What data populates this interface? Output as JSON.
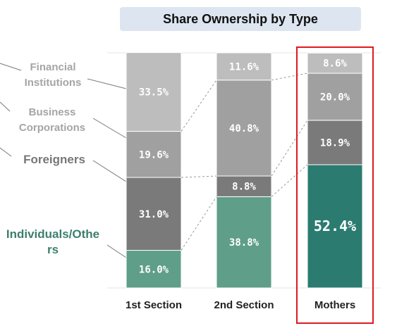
{
  "chart_data": {
    "type": "stacked_bar",
    "title": "Share Ownership by Type",
    "categories": [
      "1st Section",
      "2nd Section",
      "Mothers"
    ],
    "ylim": [
      0,
      100
    ],
    "series": [
      {
        "name": "Individuals/Others",
        "color": "#5f9e89",
        "colors": [
          "#5f9e89",
          "#5f9e89",
          "#2b7b70"
        ],
        "values": [
          16.0,
          38.8,
          52.4
        ],
        "value_labels": [
          "16.0%",
          "38.8%",
          "52.4%"
        ]
      },
      {
        "name": "Foreigners",
        "color": "#7a7a7a",
        "values": [
          31.0,
          8.8,
          18.9
        ],
        "value_labels": [
          "31.0%",
          "8.8%",
          "18.9%"
        ]
      },
      {
        "name": "Business Corporations",
        "color": "#a0a0a0",
        "values": [
          19.6,
          40.8,
          20.0
        ],
        "value_labels": [
          "19.6%",
          "40.8%",
          "20.0%"
        ]
      },
      {
        "name": "Financial Institutions",
        "color": "#bdbdbd",
        "values": [
          33.5,
          11.6,
          8.6
        ],
        "value_labels": [
          "33.5%",
          "11.6%",
          "8.6%"
        ]
      }
    ],
    "highlight": {
      "index": 2,
      "color": "#e0191e"
    }
  }
}
